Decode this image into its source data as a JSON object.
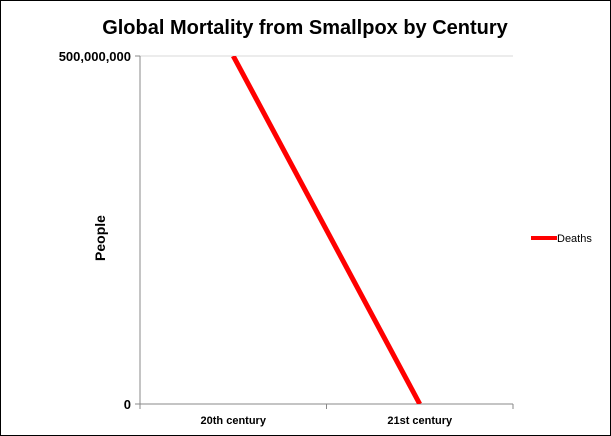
{
  "chart_data": {
    "type": "line",
    "title": "Global Mortality from Smallpox by Century",
    "xlabel": "",
    "ylabel": "People",
    "categories": [
      "20th century",
      "21st century"
    ],
    "series": [
      {
        "name": "Deaths",
        "values": [
          500000000,
          0
        ],
        "color": "#ff0000"
      }
    ],
    "ylim": [
      0,
      500000000
    ],
    "yticks": [
      0,
      500000000
    ],
    "ytick_labels": [
      "0",
      "500,000,000"
    ],
    "legend_position": "right"
  }
}
